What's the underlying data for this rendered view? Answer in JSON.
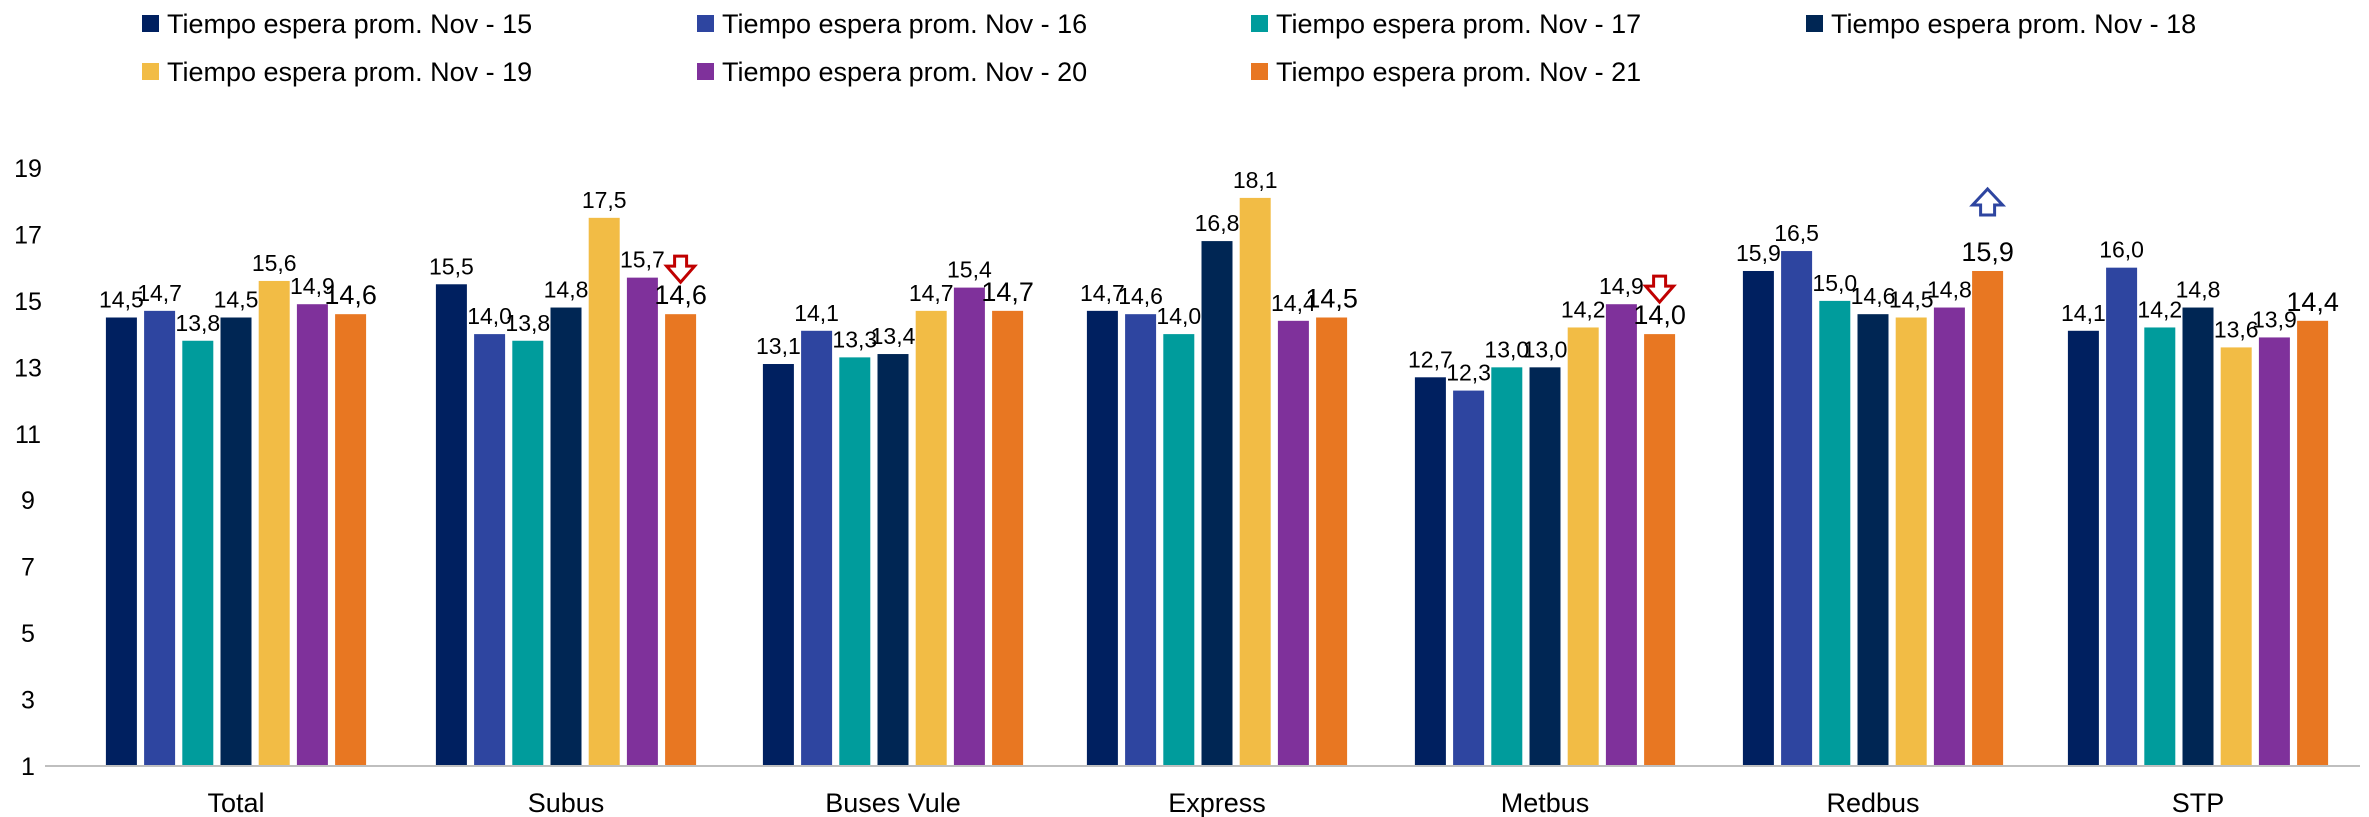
{
  "chart_data": {
    "type": "bar",
    "title": "",
    "xlabel": "",
    "ylabel": "",
    "ylim": [
      1,
      19
    ],
    "yticks": [
      "1",
      "3",
      "5",
      "7",
      "9",
      "11",
      "13",
      "15",
      "17",
      "19"
    ],
    "grid": false,
    "legend_position": "top",
    "categories": [
      "Total",
      "Subus",
      "Buses Vule",
      "Express",
      "Metbus",
      "Redbus",
      "STP"
    ],
    "series": [
      {
        "name": "Tiempo espera prom. Nov - 15",
        "color": "#002060",
        "values": [
          14.5,
          15.5,
          13.1,
          14.7,
          12.7,
          15.9,
          14.1
        ],
        "labels": [
          "14,5",
          "15,5",
          "13,1",
          "14,7",
          "12,7",
          "15,9",
          "14,1"
        ]
      },
      {
        "name": "Tiempo espera prom.  Nov - 16",
        "color": "#2E45A0",
        "values": [
          14.7,
          14.0,
          14.1,
          14.6,
          12.3,
          16.5,
          16.0
        ],
        "labels": [
          "14,7",
          "14,0",
          "14,1",
          "14,6",
          "12,3",
          "16,5",
          "16,0"
        ]
      },
      {
        "name": "Tiempo espera prom. Nov - 17",
        "color": "#009C9C",
        "values": [
          13.8,
          13.8,
          13.3,
          14.0,
          13.0,
          15.0,
          14.2
        ],
        "labels": [
          "13,8",
          "13,8",
          "13,3",
          "14,0",
          "13,0",
          "15,0",
          "14,2"
        ]
      },
      {
        "name": "Tiempo espera prom.  Nov - 18",
        "color": "#002654",
        "values": [
          14.5,
          14.8,
          13.4,
          16.8,
          13.0,
          14.6,
          14.8
        ],
        "labels": [
          "14,5",
          "14,8",
          "13,4",
          "16,8",
          "13,0",
          "14,6",
          "14,8"
        ]
      },
      {
        "name": "Tiempo espera prom.  Nov - 19",
        "color": "#F2BC45",
        "values": [
          15.6,
          17.5,
          14.7,
          18.1,
          14.2,
          14.5,
          13.6
        ],
        "labels": [
          "15,6",
          "17,5",
          "14,7",
          "18,1",
          "14,2",
          "14,5",
          "13,6"
        ]
      },
      {
        "name": "Tiempo espera prom.  Nov - 20",
        "color": "#7F319B",
        "values": [
          14.9,
          15.7,
          15.4,
          14.4,
          14.9,
          14.8,
          13.9
        ],
        "labels": [
          "14,9",
          "15,7",
          "15,4",
          "14,4",
          "14,9",
          "14,8",
          "13,9"
        ]
      },
      {
        "name": "Tiempo espera prom.  Nov - 21",
        "color": "#E87722",
        "values": [
          14.6,
          14.6,
          14.7,
          14.5,
          14.0,
          15.9,
          14.4
        ],
        "labels": [
          "14,6",
          "14,6",
          "14,7",
          "14,5",
          "14,0",
          "15,9",
          "14,4"
        ]
      }
    ],
    "annotations": [
      {
        "category": "Subus",
        "series_index": 6,
        "icon": "arrow-down-icon",
        "color": "#C00000"
      },
      {
        "category": "Metbus",
        "series_index": 6,
        "icon": "arrow-down-icon",
        "color": "#C00000"
      },
      {
        "category": "Redbus",
        "series_index": 6,
        "icon": "arrow-up-icon",
        "color": "#2E45A0"
      }
    ]
  }
}
